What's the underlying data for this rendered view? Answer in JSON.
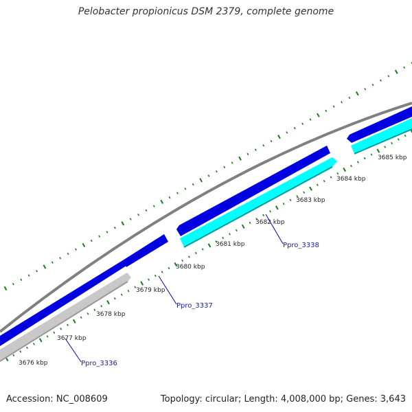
{
  "title": "Pelobacter propionicus DSM 2379, complete genome",
  "footer": {
    "accession": "Accession: NC_008609",
    "summary": "Topology: circular; Length: 4,008,000 bp; Genes: 3,643"
  },
  "colors": {
    "backbone": "#808080",
    "forward_gene": "#0000e0",
    "reverse_gene": "#00ffff",
    "other_feature": "#c8c8c8",
    "tick": "#1a7a1a",
    "label_line": "#0000cc"
  },
  "ticks": [
    {
      "kbp": 3676,
      "label": "3676 kbp"
    },
    {
      "kbp": 3677,
      "label": "3677 kbp"
    },
    {
      "kbp": 3678,
      "label": "3678 kbp"
    },
    {
      "kbp": 3679,
      "label": "3679 kbp"
    },
    {
      "kbp": 3680,
      "label": "3680 kbp"
    },
    {
      "kbp": 3681,
      "label": "3681 kbp"
    },
    {
      "kbp": 3682,
      "label": "3682 kbp"
    },
    {
      "kbp": 3683,
      "label": "3683 kbp"
    },
    {
      "kbp": 3684,
      "label": "3684 kbp"
    },
    {
      "kbp": 3685,
      "label": "3685 kbp"
    }
  ],
  "genes": [
    {
      "name": "Ppro_3336",
      "label": "Ppro_3336"
    },
    {
      "name": "Ppro_3337",
      "label": "Ppro_3337"
    },
    {
      "name": "Ppro_3338",
      "label": "Ppro_3338"
    }
  ]
}
